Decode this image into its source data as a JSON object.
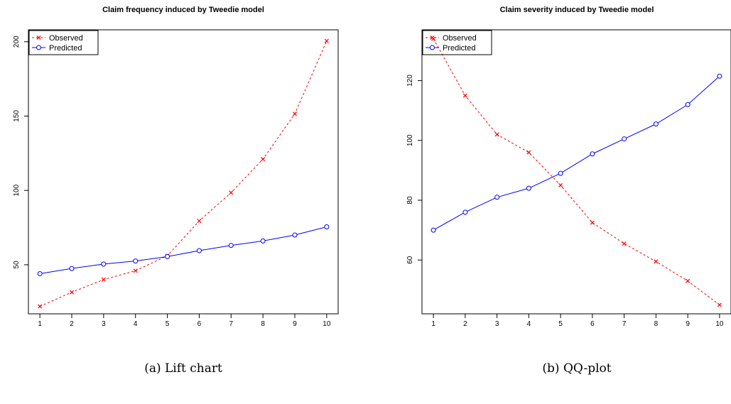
{
  "chart_data": [
    {
      "type": "line",
      "title": "Claim frequency induced by Tweedie model",
      "caption": "(a) Lift chart",
      "xlabel": "",
      "ylabel": "",
      "x": [
        1,
        2,
        3,
        4,
        5,
        6,
        7,
        8,
        9,
        10
      ],
      "xticks": [
        "1",
        "2",
        "3",
        "4",
        "5",
        "6",
        "7",
        "8",
        "9",
        "10"
      ],
      "yticks": [
        50,
        100,
        150,
        200
      ],
      "ylim": [
        17,
        208
      ],
      "legend": "top-left",
      "series": [
        {
          "name": "Observed",
          "color": "#ff0000",
          "style": "dashed",
          "marker": "x",
          "values": [
            22,
            31.5,
            40,
            46,
            56,
            79.5,
            98.5,
            121,
            151.5,
            200.5
          ]
        },
        {
          "name": "Predicted",
          "color": "#0000ff",
          "style": "solid",
          "marker": "circle",
          "values": [
            44,
            47.5,
            50.5,
            52.5,
            55.5,
            59.5,
            63,
            66,
            70,
            75.5
          ]
        }
      ]
    },
    {
      "type": "line",
      "title": "Claim severity induced by Tweedie model",
      "caption": "(b) QQ-plot",
      "xlabel": "",
      "ylabel": "",
      "x": [
        1,
        2,
        3,
        4,
        5,
        6,
        7,
        8,
        9,
        10
      ],
      "xticks": [
        "1",
        "2",
        "3",
        "4",
        "5",
        "6",
        "7",
        "8",
        "9",
        "10"
      ],
      "yticks": [
        60,
        80,
        100,
        120
      ],
      "ylim": [
        42,
        137
      ],
      "legend": "top-left",
      "series": [
        {
          "name": "Observed",
          "color": "#ff0000",
          "style": "dashed",
          "marker": "x",
          "values": [
            134,
            115,
            102,
            96,
            85,
            72.5,
            65.5,
            59.5,
            53,
            45
          ]
        },
        {
          "name": "Predicted",
          "color": "#0000ff",
          "style": "solid",
          "marker": "circle",
          "values": [
            70,
            76,
            81,
            84,
            89,
            95.5,
            100.5,
            105.5,
            112,
            121.5
          ]
        }
      ]
    }
  ]
}
